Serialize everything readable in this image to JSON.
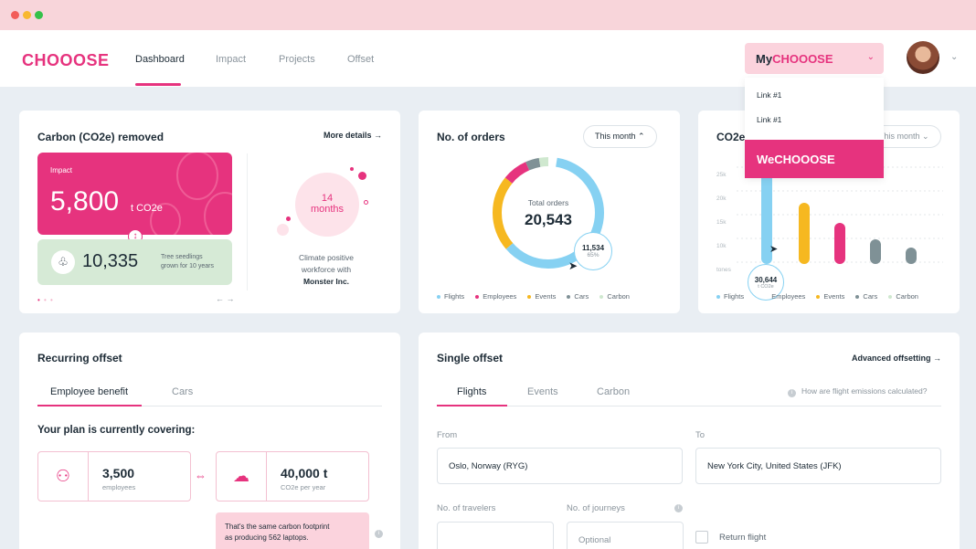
{
  "nav": {
    "logo": "CHOOOSE",
    "links": [
      "Dashboard",
      "Impact",
      "Projects",
      "Offset"
    ],
    "mychoose_prefix": "My",
    "mychoose_brand": "CHOOOSE"
  },
  "dropdown": {
    "items": [
      "Link #1",
      "Link #1"
    ],
    "wechoose_prefix": "We",
    "wechoose_brand": "CHOOOSE"
  },
  "carbon": {
    "title": "Carbon (CO2e) removed",
    "more": "More details",
    "impact_label": "Impact",
    "impact_value": "5,800",
    "impact_unit": "t CO2e",
    "trees_value": "10,335",
    "trees_label_1": "Tree seedlings",
    "trees_label_2": "grown for 10 years",
    "months_value": "14",
    "months_label": "months",
    "climate_1": "Climate positive",
    "climate_2": "workforce with",
    "climate_3": "Monster Inc."
  },
  "orders": {
    "title": "No. of orders",
    "period": "This month",
    "total_label": "Total orders",
    "total_value": "20,543",
    "callout_value": "11,534",
    "callout_pct": "65%",
    "legend": [
      "Flights",
      "Employees",
      "Events",
      "Cars",
      "Carbon"
    ]
  },
  "co2": {
    "title": "CO2e",
    "period": "This month",
    "yticks": [
      "25k",
      "20k",
      "15k",
      "10k",
      "tones"
    ],
    "callout_value": "30,644",
    "callout_unit": "t CO2e",
    "legend": [
      "Flights",
      "Employees",
      "Events",
      "Cars",
      "Carbon"
    ]
  },
  "recurring": {
    "title": "Recurring offset",
    "tabs": [
      "Employee benefit",
      "Cars"
    ],
    "covering": "Your plan is currently covering:",
    "employees_value": "3,500",
    "employees_label": "employees",
    "tons_value": "40,000 t",
    "tons_label": "CO2e per year",
    "footprint_1": "That's the same carbon footprint",
    "footprint_2": "as producing 562 laptops."
  },
  "single": {
    "title": "Single offset",
    "advanced": "Advanced offsetting",
    "tabs": [
      "Flights",
      "Events",
      "Carbon"
    ],
    "help": "How are flight emissions calculated?",
    "from_label": "From",
    "from_value": "Oslo, Norway (RYG)",
    "to_label": "To",
    "to_value": "New York City, United States (JFK)",
    "travelers_label": "No. of travelers",
    "journeys_label": "No. of journeys",
    "journeys_placeholder": "Optional",
    "return_label": "Return flight"
  },
  "colors": {
    "brand": "#e6337e",
    "flights": "#86d1f2",
    "employees": "#e6337e",
    "events": "#f6b820",
    "cars": "#7f9196",
    "carbon": "#cfe8cf"
  }
}
